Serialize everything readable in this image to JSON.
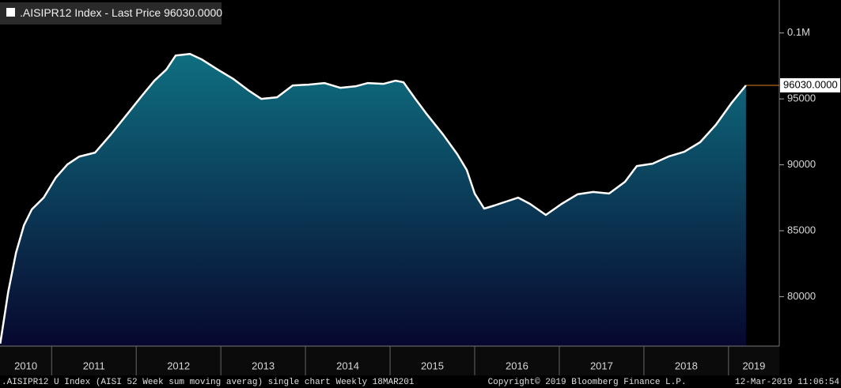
{
  "chart_data": {
    "type": "area",
    "series": [
      {
        "name": ".AISIPR12 Index - Last Price",
        "color": "#ffffff",
        "area_gradient": [
          "#0f6f80",
          "#07072e"
        ],
        "last_marker_color": "#e07b20",
        "x": [
          2010.393,
          2010.486,
          2010.579,
          2010.673,
          2010.766,
          2010.907,
          2011.047,
          2011.187,
          2011.327,
          2011.514,
          2011.701,
          2011.888,
          2012.075,
          2012.215,
          2012.355,
          2012.467,
          2012.636,
          2012.776,
          2012.963,
          2013.15,
          2013.336,
          2013.477,
          2013.664,
          2013.85,
          2014.037,
          2014.224,
          2014.411,
          2014.598,
          2014.738,
          2014.925,
          2015.065,
          2015.159,
          2015.299,
          2015.439,
          2015.626,
          2015.794,
          2015.907,
          2016.0,
          2016.112,
          2016.234,
          2016.374,
          2016.514,
          2016.654,
          2016.841,
          2017.028,
          2017.215,
          2017.402,
          2017.589,
          2017.776,
          2017.916,
          2018.103,
          2018.29,
          2018.477,
          2018.664,
          2018.85,
          2019.037,
          2019.206
        ],
        "values": [
          76440,
          80330,
          83320,
          85420,
          86620,
          87520,
          89010,
          90030,
          90630,
          90930,
          92310,
          93800,
          95300,
          96380,
          97220,
          98290,
          98410,
          97990,
          97220,
          96500,
          95600,
          95000,
          95120,
          96020,
          96080,
          96200,
          95840,
          95960,
          96200,
          96140,
          96380,
          96260,
          95000,
          93800,
          92300,
          90810,
          89610,
          87820,
          86680,
          86920,
          87220,
          87510,
          87040,
          86200,
          87040,
          87760,
          87940,
          87820,
          88710,
          89910,
          90090,
          90630,
          90990,
          91710,
          93030,
          94700,
          96030
        ],
        "value_labels": [
          null,
          null,
          null,
          null,
          null,
          null,
          null,
          null,
          null,
          null,
          null,
          null,
          null,
          null,
          null,
          null,
          null,
          null,
          null,
          null,
          null,
          null,
          null,
          null,
          null,
          null,
          null,
          null,
          null,
          null,
          null,
          null,
          null,
          null,
          null,
          null,
          null,
          null,
          null,
          null,
          null,
          null,
          null,
          null,
          null,
          null,
          null,
          null,
          null,
          null,
          null,
          null,
          null,
          null,
          null,
          null,
          "96030.0000"
        ]
      }
    ],
    "xlim": [
      2010.39,
      2019.6
    ],
    "xticks": [
      2010,
      2011,
      2012,
      2013,
      2014,
      2015,
      2016,
      2017,
      2018,
      2019
    ],
    "ylim": [
      76250,
      102500
    ],
    "yticks": [
      80000,
      85000,
      90000,
      95000,
      {
        "value": 100000,
        "label": "0.1M"
      }
    ],
    "grid": false
  },
  "footer": {
    "left": ".AISIPR12 U Index (AISI 52 Week sum moving averag) single chart  Weekly 18MAR201",
    "center": "Copyright© 2019 Bloomberg Finance L.P.",
    "right": "12-Mar-2019 11:06:54"
  }
}
